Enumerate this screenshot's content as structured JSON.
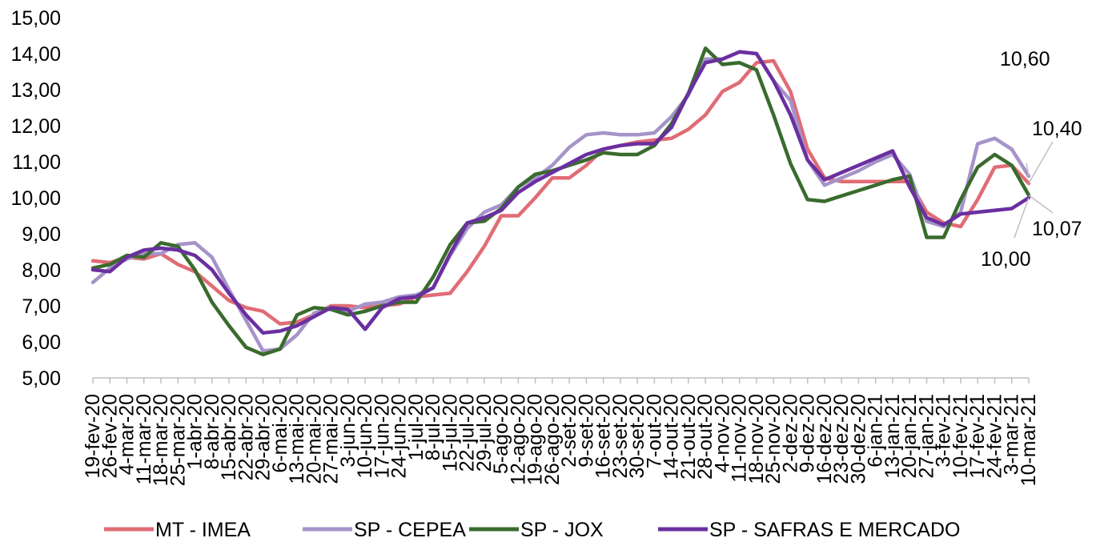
{
  "chart_data": {
    "type": "line",
    "title": "",
    "xlabel": "",
    "ylabel": "",
    "ylim": [
      5,
      15
    ],
    "yticks": [
      "5,00",
      "6,00",
      "7,00",
      "8,00",
      "9,00",
      "10,00",
      "11,00",
      "12,00",
      "13,00",
      "14,00",
      "15,00"
    ],
    "grid": false,
    "legend_position": "bottom",
    "categories": [
      "19-fev-20",
      "26-fev-20",
      "4-mar-20",
      "11-mar-20",
      "18-mar-20",
      "25-mar-20",
      "1-abr-20",
      "8-abr-20",
      "15-abr-20",
      "22-abr-20",
      "29-abr-20",
      "6-mai-20",
      "13-mai-20",
      "20-mai-20",
      "27-mai-20",
      "3-jun-20",
      "10-jun-20",
      "17-jun-20",
      "24-jun-20",
      "1-jul-20",
      "8-jul-20",
      "15-jul-20",
      "22-jul-20",
      "29-jul-20",
      "5-ago-20",
      "12-ago-20",
      "19-ago-20",
      "26-ago-20",
      "2-set-20",
      "9-set-20",
      "16-set-20",
      "23-set-20",
      "30-set-20",
      "7-out-20",
      "14-out-20",
      "21-out-20",
      "28-out-20",
      "4-nov-20",
      "11-nov-20",
      "18-nov-20",
      "25-nov-20",
      "2-dez-20",
      "9-dez-20",
      "16-dez-20",
      "23-dez-20",
      "30-dez-20",
      "6-jan-21",
      "13-jan-21",
      "20-jan-21",
      "27-jan-21",
      "3-fev-21",
      "10-fev-21",
      "17-fev-21",
      "24-fev-21",
      "3-mar-21",
      "10-mar-21"
    ],
    "series": [
      {
        "name": "MT - IMEA",
        "color": "#E06C75",
        "values": [
          8.25,
          8.2,
          8.35,
          8.3,
          8.45,
          8.15,
          7.95,
          7.55,
          7.15,
          6.95,
          6.85,
          6.5,
          6.55,
          6.75,
          7.0,
          7.0,
          6.95,
          7.0,
          7.05,
          7.25,
          7.3,
          7.35,
          7.95,
          8.65,
          9.5,
          9.5,
          10.0,
          10.55,
          10.55,
          10.9,
          11.35,
          11.45,
          11.55,
          11.6,
          11.65,
          11.9,
          12.3,
          12.95,
          13.2,
          13.75,
          13.8,
          12.95,
          11.35,
          10.55,
          10.45,
          10.45,
          10.45,
          10.45,
          10.45,
          9.6,
          9.3,
          9.2,
          9.95,
          10.85,
          10.9,
          10.4
        ]
      },
      {
        "name": "SP - CEPEA",
        "color": "#A593C9",
        "values": [
          7.65,
          8.05,
          8.3,
          8.45,
          8.45,
          8.7,
          8.75,
          8.35,
          7.45,
          6.6,
          5.75,
          5.8,
          6.2,
          6.8,
          6.95,
          6.85,
          7.05,
          7.1,
          7.25,
          7.3,
          7.5,
          8.4,
          9.15,
          9.6,
          9.8,
          10.3,
          10.55,
          10.9,
          11.4,
          11.75,
          11.8,
          11.75,
          11.75,
          11.8,
          12.25,
          12.85,
          13.85,
          13.85,
          14.05,
          14.0,
          13.25,
          12.7,
          11.05,
          10.35,
          10.55,
          10.75,
          11.0,
          11.2,
          10.65,
          9.35,
          9.2,
          9.6,
          11.5,
          11.65,
          11.35,
          10.6
        ]
      },
      {
        "name": "SP - JOX",
        "color": "#3A6B2E",
        "values": [
          8.05,
          8.15,
          8.4,
          8.35,
          8.75,
          8.65,
          8.0,
          7.1,
          6.45,
          5.85,
          5.65,
          5.8,
          6.75,
          6.95,
          6.9,
          6.75,
          6.85,
          7.0,
          7.1,
          7.1,
          7.8,
          8.7,
          9.3,
          9.35,
          9.7,
          10.3,
          10.65,
          10.75,
          10.9,
          11.05,
          11.25,
          11.2,
          11.2,
          11.45,
          12.05,
          12.9,
          14.15,
          13.7,
          13.75,
          13.55,
          12.3,
          10.95,
          9.95,
          9.9,
          10.05,
          10.2,
          10.35,
          10.5,
          10.6,
          8.9,
          8.9,
          9.95,
          10.85,
          11.2,
          10.9,
          10.07
        ]
      },
      {
        "name": "SP - SAFRAS E MERCADO",
        "color": "#6A2FA0",
        "values": [
          8.0,
          7.95,
          8.35,
          8.55,
          8.6,
          8.55,
          8.4,
          8.0,
          7.35,
          6.75,
          6.25,
          6.3,
          6.45,
          6.7,
          6.95,
          6.9,
          6.35,
          6.95,
          7.2,
          7.25,
          7.5,
          8.45,
          9.3,
          9.45,
          9.65,
          10.15,
          10.45,
          10.7,
          10.95,
          11.2,
          11.35,
          11.45,
          11.5,
          11.5,
          11.95,
          12.9,
          13.75,
          13.85,
          14.05,
          14.0,
          13.25,
          12.3,
          11.05,
          10.5,
          10.7,
          10.9,
          11.1,
          11.3,
          10.3,
          9.45,
          9.25,
          9.55,
          9.6,
          9.65,
          9.7,
          10.0
        ]
      }
    ],
    "annotations": [
      {
        "text": "10,60",
        "series": "SP - CEPEA",
        "value": 10.6
      },
      {
        "text": "10,40",
        "series": "MT - IMEA",
        "value": 10.4
      },
      {
        "text": "10,07",
        "series": "SP - JOX",
        "value": 10.07
      },
      {
        "text": "10,00",
        "series": "SP - SAFRAS E MERCADO",
        "value": 10.0
      }
    ]
  }
}
